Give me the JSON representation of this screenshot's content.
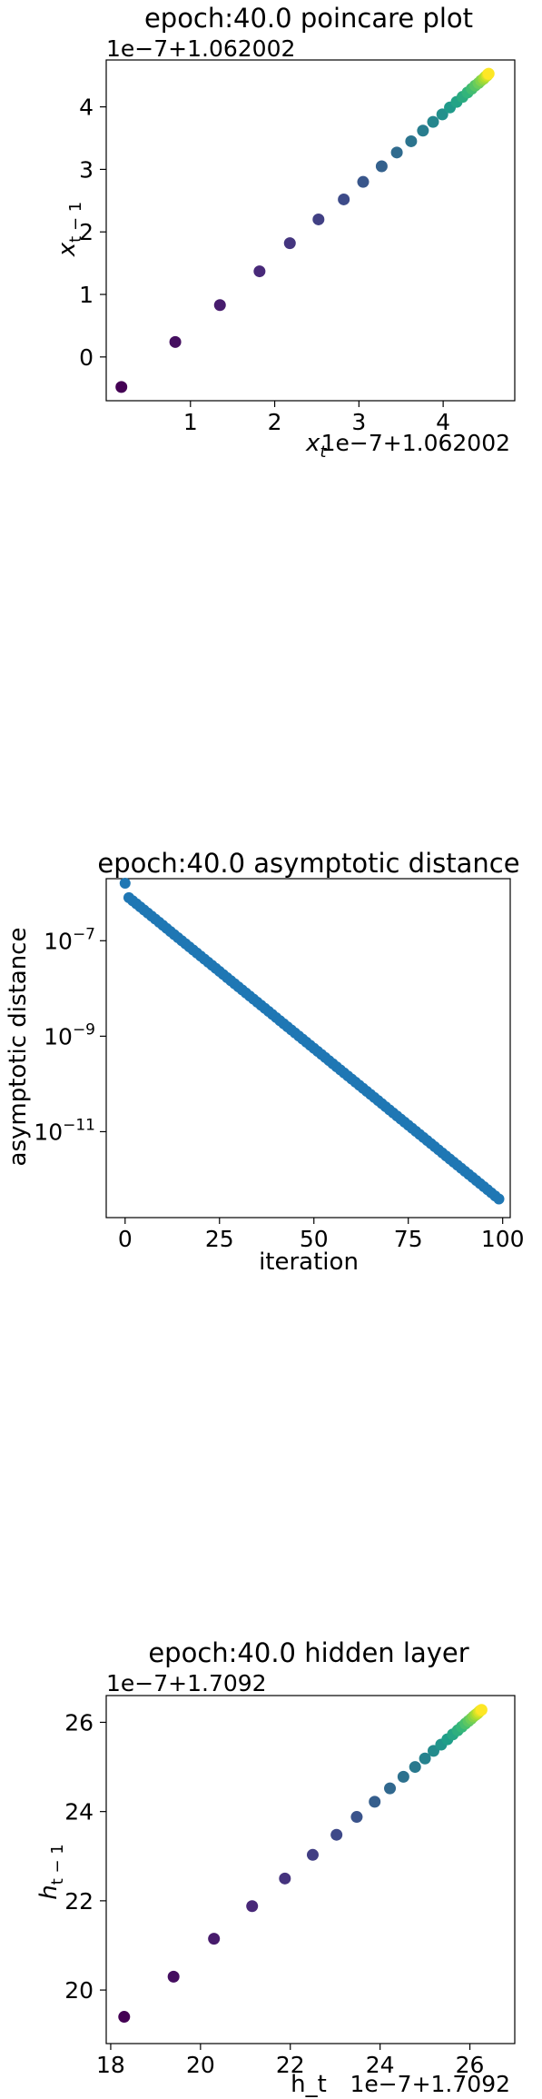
{
  "chart_data": [
    {
      "type": "scatter",
      "title": "epoch:40.0 poincare plot",
      "xlabel": "x_t",
      "ylabel": "x_{t-1}",
      "x_offset_label": "1e−7+1.062002",
      "y_offset_label": "1e−7+1.062002",
      "xlim": [
        0.0,
        4.85
      ],
      "ylim": [
        -0.7,
        4.75
      ],
      "xticks": [
        1,
        2,
        3,
        4
      ],
      "yticks": [
        0,
        1,
        2,
        3,
        4
      ],
      "log_y": false,
      "grid": false,
      "colormap": "viridis",
      "point_color_start": "#440154",
      "point_color_end": "#fde725",
      "points": [
        {
          "x": 0.18,
          "y": -0.48
        },
        {
          "x": 0.82,
          "y": 0.24
        },
        {
          "x": 1.35,
          "y": 0.83
        },
        {
          "x": 1.82,
          "y": 1.37
        },
        {
          "x": 2.18,
          "y": 1.82
        },
        {
          "x": 2.52,
          "y": 2.2
        },
        {
          "x": 2.82,
          "y": 2.52
        },
        {
          "x": 3.05,
          "y": 2.8
        },
        {
          "x": 3.27,
          "y": 3.05
        },
        {
          "x": 3.45,
          "y": 3.27
        },
        {
          "x": 3.62,
          "y": 3.45
        },
        {
          "x": 3.76,
          "y": 3.62
        },
        {
          "x": 3.88,
          "y": 3.76
        },
        {
          "x": 3.99,
          "y": 3.88
        },
        {
          "x": 4.08,
          "y": 3.99
        },
        {
          "x": 4.16,
          "y": 4.08
        },
        {
          "x": 4.23,
          "y": 4.16
        },
        {
          "x": 4.29,
          "y": 4.23
        },
        {
          "x": 4.34,
          "y": 4.29
        },
        {
          "x": 4.38,
          "y": 4.34
        },
        {
          "x": 4.42,
          "y": 4.38
        },
        {
          "x": 4.45,
          "y": 4.42
        },
        {
          "x": 4.48,
          "y": 4.45
        },
        {
          "x": 4.5,
          "y": 4.48
        },
        {
          "x": 4.52,
          "y": 4.5
        },
        {
          "x": 4.53,
          "y": 4.52
        },
        {
          "x": 4.54,
          "y": 4.53
        }
      ]
    },
    {
      "type": "scatter",
      "title": "epoch:40.0 asymptotic distance",
      "xlabel": "iteration",
      "ylabel": "asymptotic distance",
      "xlim": [
        -5,
        102
      ],
      "ylim_log10": [
        -12.8,
        -5.7
      ],
      "xticks": [
        0,
        25,
        50,
        75,
        100
      ],
      "yticks_log10": [
        -7,
        -9,
        -11
      ],
      "ytick_labels": [
        "10−7",
        "10−9",
        "10−11"
      ],
      "log_y": true,
      "grid": false,
      "point_color": "#1f77b4",
      "first_point": {
        "x": 0,
        "y": 1.6e-06
      },
      "series_start": {
        "x": 1,
        "y": 8e-07
      },
      "series_end": {
        "x": 99,
        "y": 3.9e-13
      },
      "series_length": 100
    },
    {
      "type": "scatter",
      "title": "epoch:40.0 hidden layer",
      "xlabel": "h_t",
      "ylabel": "h_{t-1}",
      "x_offset_label": "1e−7+1.7092",
      "y_offset_label": "1e−7+1.7092",
      "xlim": [
        17.9,
        27.0
      ],
      "ylim": [
        18.8,
        26.6
      ],
      "xticks": [
        18,
        20,
        22,
        24,
        26
      ],
      "yticks": [
        20,
        22,
        24,
        26
      ],
      "log_y": false,
      "grid": false,
      "colormap": "viridis",
      "point_color_start": "#440154",
      "point_color_end": "#fde725",
      "points": [
        {
          "x": 18.3,
          "y": 19.4
        },
        {
          "x": 19.4,
          "y": 20.3
        },
        {
          "x": 20.3,
          "y": 21.15
        },
        {
          "x": 21.15,
          "y": 21.88
        },
        {
          "x": 21.88,
          "y": 22.5
        },
        {
          "x": 22.5,
          "y": 23.03
        },
        {
          "x": 23.03,
          "y": 23.48
        },
        {
          "x": 23.48,
          "y": 23.88
        },
        {
          "x": 23.88,
          "y": 24.22
        },
        {
          "x": 24.22,
          "y": 24.52
        },
        {
          "x": 24.52,
          "y": 24.78
        },
        {
          "x": 24.78,
          "y": 25.0
        },
        {
          "x": 25.0,
          "y": 25.19
        },
        {
          "x": 25.19,
          "y": 25.36
        },
        {
          "x": 25.36,
          "y": 25.5
        },
        {
          "x": 25.5,
          "y": 25.62
        },
        {
          "x": 25.62,
          "y": 25.73
        },
        {
          "x": 25.73,
          "y": 25.82
        },
        {
          "x": 25.82,
          "y": 25.9
        },
        {
          "x": 25.9,
          "y": 25.97
        },
        {
          "x": 25.97,
          "y": 26.03
        },
        {
          "x": 26.03,
          "y": 26.08
        },
        {
          "x": 26.08,
          "y": 26.13
        },
        {
          "x": 26.13,
          "y": 26.17
        },
        {
          "x": 26.17,
          "y": 26.2
        },
        {
          "x": 26.2,
          "y": 26.23
        },
        {
          "x": 26.23,
          "y": 26.26
        },
        {
          "x": 26.26,
          "y": 26.28
        }
      ]
    }
  ]
}
